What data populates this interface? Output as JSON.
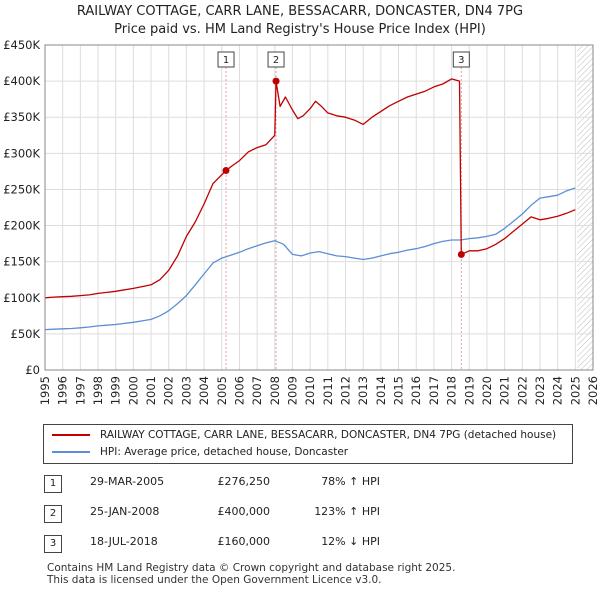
{
  "header": {
    "title_line1": "RAILWAY COTTAGE, CARR LANE, BESSACARR, DONCASTER, DN4 7PG",
    "title_line2": "Price paid vs. HM Land Registry's House Price Index (HPI)"
  },
  "colors": {
    "property_line": "#c00000",
    "hpi_line": "#5b8ed6",
    "marker_line": "#e8a0a0",
    "future_hatch": "#bbbbbb",
    "grid": "#dddddd"
  },
  "chart_data": {
    "type": "line",
    "ylim": [
      0,
      450000
    ],
    "xlim": [
      1995,
      2026
    ],
    "future_start": 2025.1,
    "y_ticks": [
      0,
      50000,
      100000,
      150000,
      200000,
      250000,
      300000,
      350000,
      400000,
      450000
    ],
    "y_tick_labels": [
      "£0",
      "£50K",
      "£100K",
      "£150K",
      "£200K",
      "£250K",
      "£300K",
      "£350K",
      "£400K",
      "£450K"
    ],
    "x_ticks": [
      1995,
      1996,
      1997,
      1998,
      1999,
      2000,
      2001,
      2002,
      2003,
      2004,
      2005,
      2006,
      2007,
      2008,
      2009,
      2010,
      2011,
      2012,
      2013,
      2014,
      2015,
      2016,
      2017,
      2018,
      2019,
      2020,
      2021,
      2022,
      2023,
      2024,
      2025,
      2026
    ],
    "x_tick_labels": [
      "1995",
      "1996",
      "1997",
      "1998",
      "1999",
      "2000",
      "2001",
      "2002",
      "2003",
      "2004",
      "2005",
      "2006",
      "2007",
      "2008",
      "2009",
      "2010",
      "2011",
      "2012",
      "2013",
      "2014",
      "2015",
      "2016",
      "2017",
      "2018",
      "2019",
      "2020",
      "2021",
      "2022",
      "2023",
      "2024",
      "2025",
      "2026"
    ],
    "series": [
      {
        "name": "RAILWAY COTTAGE, CARR LANE, BESSACARR, DONCASTER, DN4 7PG (detached house)",
        "color": "#c00000",
        "x": [
          1995.0,
          1995.5,
          1996.0,
          1996.5,
          1997.0,
          1997.5,
          1998.0,
          1998.5,
          1999.0,
          1999.5,
          2000.0,
          2000.5,
          2001.0,
          2001.5,
          2002.0,
          2002.5,
          2003.0,
          2003.5,
          2004.0,
          2004.5,
          2005.24,
          2005.6,
          2006.0,
          2006.5,
          2007.0,
          2007.5,
          2008.0,
          2008.07,
          2008.3,
          2008.6,
          2009.0,
          2009.3,
          2009.6,
          2010.0,
          2010.3,
          2010.6,
          2011.0,
          2011.5,
          2012.0,
          2012.5,
          2013.0,
          2013.5,
          2014.0,
          2014.5,
          2015.0,
          2015.5,
          2016.0,
          2016.5,
          2017.0,
          2017.5,
          2018.0,
          2018.45,
          2018.55,
          2019.0,
          2019.5,
          2020.0,
          2020.5,
          2021.0,
          2021.5,
          2022.0,
          2022.5,
          2023.0,
          2023.5,
          2024.0,
          2024.5,
          2025.0
        ],
        "y": [
          100000,
          101000,
          101500,
          102000,
          103000,
          104000,
          106000,
          107500,
          109000,
          111000,
          113000,
          115500,
          118000,
          125000,
          138000,
          158000,
          185000,
          205000,
          230000,
          258000,
          276250,
          283000,
          290000,
          302000,
          308000,
          312000,
          325000,
          400000,
          365000,
          378000,
          360000,
          348000,
          352000,
          362000,
          372000,
          366000,
          356000,
          352000,
          350000,
          346000,
          340000,
          350000,
          358000,
          366000,
          372000,
          378000,
          382000,
          386000,
          392000,
          396000,
          403000,
          400000,
          160000,
          165000,
          165000,
          168000,
          174000,
          182000,
          192000,
          202000,
          212000,
          208000,
          210000,
          213000,
          217000,
          222000
        ]
      },
      {
        "name": "HPI: Average price, detached house, Doncaster",
        "color": "#5b8ed6",
        "x": [
          1995.0,
          1995.5,
          1996.0,
          1996.5,
          1997.0,
          1997.5,
          1998.0,
          1998.5,
          1999.0,
          1999.5,
          2000.0,
          2000.5,
          2001.0,
          2001.5,
          2002.0,
          2002.5,
          2003.0,
          2003.5,
          2004.0,
          2004.5,
          2005.0,
          2005.5,
          2006.0,
          2006.5,
          2007.0,
          2007.5,
          2008.0,
          2008.5,
          2009.0,
          2009.5,
          2010.0,
          2010.5,
          2011.0,
          2011.5,
          2012.0,
          2012.5,
          2013.0,
          2013.5,
          2014.0,
          2014.5,
          2015.0,
          2015.5,
          2016.0,
          2016.5,
          2017.0,
          2017.5,
          2018.0,
          2018.5,
          2019.0,
          2019.5,
          2020.0,
          2020.5,
          2021.0,
          2021.5,
          2022.0,
          2022.5,
          2023.0,
          2023.5,
          2024.0,
          2024.5,
          2025.0
        ],
        "y": [
          56000,
          56500,
          57000,
          57500,
          58500,
          59500,
          61000,
          62000,
          63000,
          64500,
          66000,
          68000,
          70000,
          75000,
          82000,
          92000,
          103000,
          118000,
          133000,
          148000,
          155000,
          159000,
          163000,
          168000,
          172000,
          176000,
          179000,
          174000,
          160000,
          158000,
          162000,
          164000,
          161000,
          158000,
          157000,
          155000,
          153000,
          155000,
          158000,
          161000,
          163000,
          166000,
          168000,
          171000,
          175000,
          178000,
          180000,
          180000,
          182000,
          183000,
          185000,
          188000,
          196000,
          206000,
          216000,
          228000,
          238000,
          240000,
          242000,
          248000,
          252000
        ]
      }
    ],
    "sales": [
      {
        "label": "1",
        "x": 2005.24,
        "y": 276250
      },
      {
        "label": "2",
        "x": 2008.07,
        "y": 400000
      },
      {
        "label": "3",
        "x": 2018.55,
        "y": 160000
      }
    ]
  },
  "legend": {
    "property": "RAILWAY COTTAGE, CARR LANE, BESSACARR, DONCASTER, DN4 7PG (detached house)",
    "hpi": "HPI: Average price, detached house, Doncaster"
  },
  "transactions": [
    {
      "num": "1",
      "date": "29-MAR-2005",
      "price": "£276,250",
      "hpi": "78% ↑ HPI"
    },
    {
      "num": "2",
      "date": "25-JAN-2008",
      "price": "£400,000",
      "hpi": "123% ↑ HPI"
    },
    {
      "num": "3",
      "date": "18-JUL-2018",
      "price": "£160,000",
      "hpi": "12% ↓ HPI"
    }
  ],
  "footer": {
    "line1": "Contains HM Land Registry data © Crown copyright and database right 2025.",
    "line2": "This data is licensed under the Open Government Licence v3.0."
  }
}
